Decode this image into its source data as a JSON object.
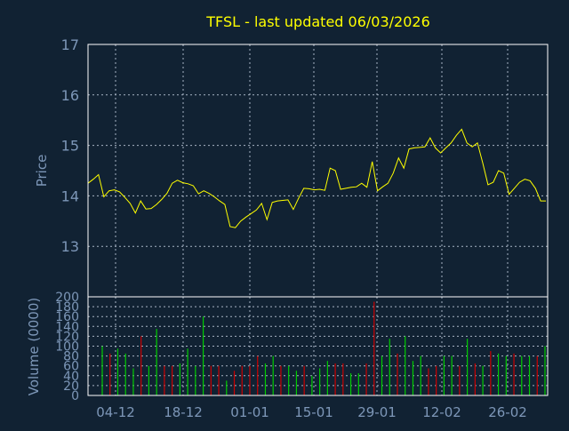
{
  "colors": {
    "background": "#112233",
    "plot_frame": "#ffffff",
    "grid": "#a8b4c4",
    "title_color": "#ffff00",
    "axis_text": "#7d97b8",
    "price_line": "#ffff00",
    "volume_up": "#00cc00",
    "volume_down": "#cc0000"
  },
  "chart_data": [
    {
      "type": "line",
      "title": "TFSL - last updated 06/03/2026",
      "ylabel": "Price",
      "ylim": [
        12.0,
        17.0
      ],
      "y_ticks": [
        "13",
        "14",
        "15",
        "16",
        "17"
      ],
      "x_ticks": [
        "04-12",
        "18-12",
        "01-01",
        "15-01",
        "29-01",
        "12-02",
        "26-02"
      ],
      "grid": true,
      "series": [
        {
          "values": [
            14.25,
            14.33,
            14.42,
            13.98,
            14.1,
            14.12,
            14.08,
            13.97,
            13.85,
            13.66,
            13.9,
            13.74,
            13.75,
            13.83,
            13.93,
            14.05,
            14.25,
            14.31,
            14.26,
            14.24,
            14.2,
            14.04,
            14.1,
            14.05,
            13.98,
            13.9,
            13.83,
            13.39,
            13.37,
            13.5,
            13.58,
            13.65,
            13.72,
            13.85,
            13.53,
            13.87,
            13.9,
            13.91,
            13.92,
            13.73,
            13.95,
            14.15,
            14.14,
            14.12,
            14.13,
            14.11,
            14.55,
            14.5,
            14.13,
            14.15,
            14.17,
            14.18,
            14.25,
            14.17,
            14.68,
            14.1,
            14.18,
            14.25,
            14.45,
            14.75,
            14.55,
            14.93,
            14.95,
            14.96,
            14.97,
            15.15,
            14.95,
            14.85,
            14.95,
            15.05,
            15.2,
            15.32,
            15.05,
            14.97,
            15.05,
            14.65,
            14.22,
            14.27,
            14.5,
            14.45,
            14.03,
            14.15,
            14.27,
            14.33,
            14.3,
            14.15,
            13.9,
            13.9
          ]
        }
      ]
    },
    {
      "type": "bar",
      "ylabel": "Volume (0000)",
      "ylim": [
        0,
        200
      ],
      "y_ticks": [
        "0",
        "20",
        "40",
        "60",
        "80",
        "100",
        "120",
        "140",
        "160",
        "180",
        "200"
      ],
      "x_ticks": [
        "04-12",
        "18-12",
        "01-01",
        "15-01",
        "29-01",
        "12-02",
        "26-02"
      ],
      "grid": true,
      "series": [
        {
          "values": [
            100,
            85,
            95,
            85,
            55,
            120,
            60,
            135,
            60,
            60,
            65,
            95,
            60,
            160,
            60,
            60,
            30,
            50,
            60,
            60,
            80,
            65,
            80,
            60,
            60,
            50,
            60,
            40,
            55,
            70,
            65,
            65,
            45,
            45,
            65,
            190,
            80,
            115,
            85,
            120,
            70,
            80,
            55,
            60,
            80,
            80,
            60,
            115,
            65,
            60,
            90,
            85,
            80,
            85,
            80,
            80,
            80,
            100
          ],
          "direction": [
            "up",
            "down",
            "up",
            "up",
            "up",
            "down",
            "up",
            "up",
            "down",
            "down",
            "up",
            "up",
            "up",
            "up",
            "down",
            "down",
            "up",
            "down",
            "down",
            "down",
            "down",
            "up",
            "up",
            "down",
            "up",
            "up",
            "down",
            "up",
            "up",
            "up",
            "down",
            "down",
            "up",
            "up",
            "down",
            "down",
            "up",
            "up",
            "down",
            "up",
            "up",
            "up",
            "down",
            "down",
            "up",
            "up",
            "down",
            "up",
            "down",
            "up",
            "down",
            "up",
            "up",
            "down",
            "up",
            "up",
            "down",
            "up"
          ]
        }
      ]
    }
  ]
}
